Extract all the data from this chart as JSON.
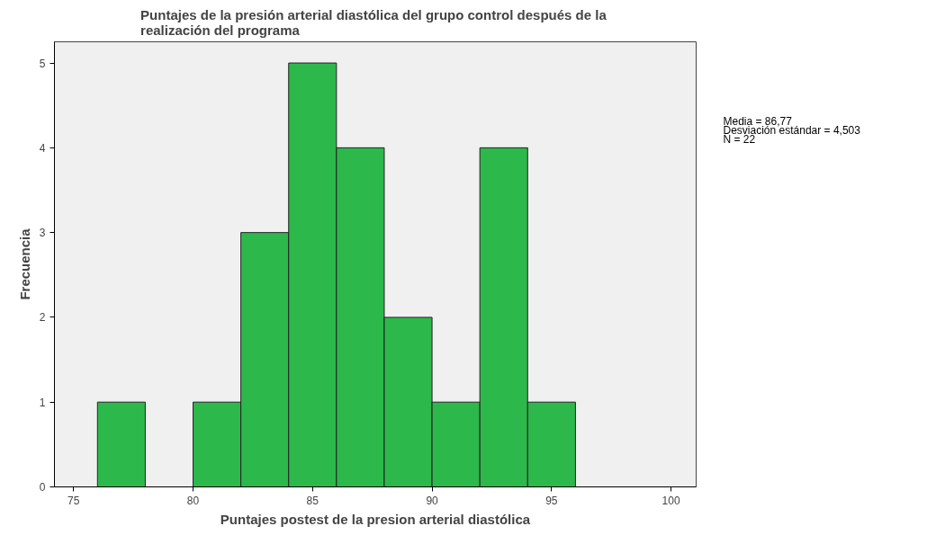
{
  "chart_data": {
    "type": "histogram",
    "title": "Puntajes de la presión arterial diastólica  del grupo control después de la realización del programa",
    "xlabel": "Puntajes postest de la presion arterial diastólica",
    "ylabel": "Frecuencia",
    "bins": [
      76,
      78,
      80,
      82,
      84,
      86,
      88,
      90,
      92,
      94,
      96
    ],
    "values": [
      1,
      0,
      1,
      3,
      5,
      4,
      2,
      1,
      4,
      1
    ],
    "color": "#2db84b",
    "xlim": [
      74.2,
      101.05
    ],
    "ylim": [
      0,
      5.25
    ],
    "xticks": [
      75,
      80,
      85,
      90,
      95,
      100
    ],
    "yticks": [
      0,
      1,
      2,
      3,
      4,
      5
    ],
    "annotations": [
      "Media = 86,77",
      "Desviación estándar = 4,503",
      "N = 22"
    ]
  }
}
